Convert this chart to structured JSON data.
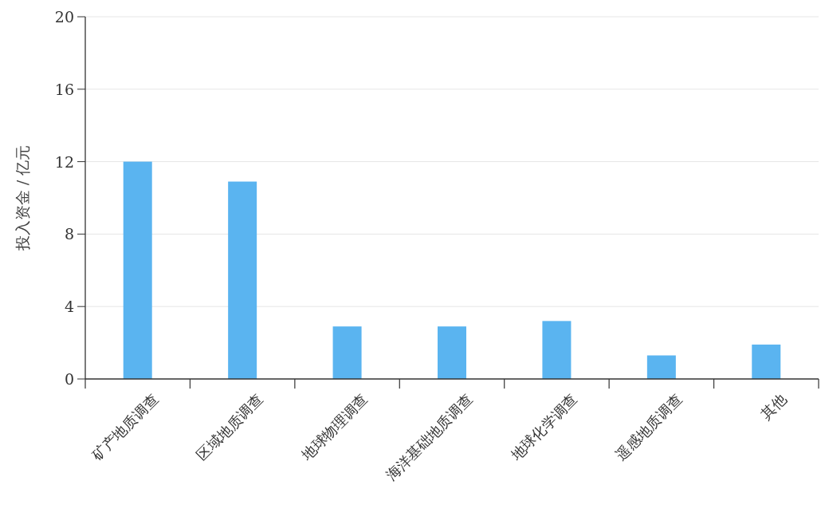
{
  "chart_data": {
    "type": "bar",
    "ylabel": "投入资金 / 亿元",
    "categories": [
      "矿产地质调查",
      "区域地质调查",
      "地球物理调查",
      "海洋基础地质调查",
      "地球化学调查",
      "遥感地质调查",
      "其他"
    ],
    "values": [
      12,
      10.9,
      2.9,
      2.9,
      3.2,
      1.3,
      1.9
    ],
    "color": "#5ab4f0",
    "ylim": [
      0,
      20
    ],
    "yticks": [
      0,
      4,
      8,
      12,
      16,
      20
    ],
    "grid": "y"
  }
}
